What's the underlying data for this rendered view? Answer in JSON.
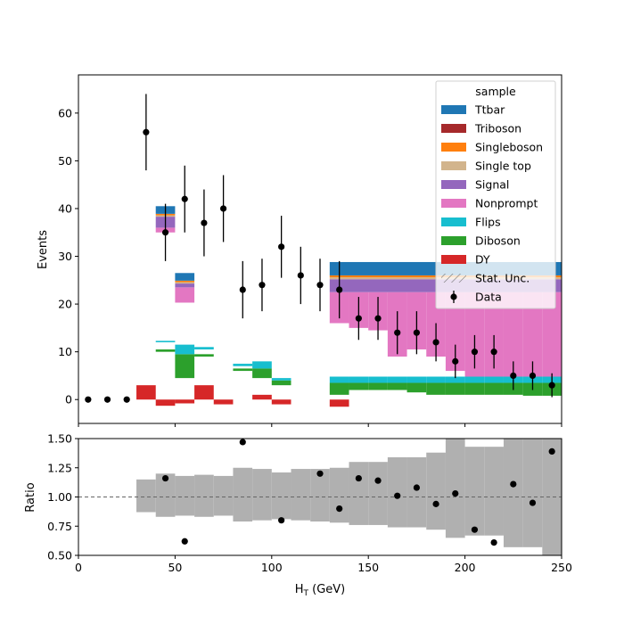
{
  "chart_data": {
    "type": "bar",
    "xlabel": "H",
    "xlabel_sub": "T",
    "xlabel_unit": " (GeV)",
    "xlim": [
      0,
      250
    ],
    "x_ticks": [
      0,
      50,
      100,
      150,
      200,
      250
    ],
    "bin_width": 10,
    "main": {
      "ylabel": "Events",
      "ylim": [
        -5,
        68
      ],
      "y_ticks": [
        0,
        10,
        20,
        30,
        40,
        50,
        60
      ],
      "legend": {
        "title": "sample",
        "position": "upper-right",
        "entries": [
          {
            "label": "Ttbar",
            "color": "#1f77b4",
            "kind": "patch"
          },
          {
            "label": "Triboson",
            "color": "#a6292b",
            "kind": "patch"
          },
          {
            "label": "Singleboson",
            "color": "#ff7f0e",
            "kind": "patch"
          },
          {
            "label": "Single top",
            "color": "#d2b48c",
            "kind": "patch"
          },
          {
            "label": "Signal",
            "color": "#9467bd",
            "kind": "patch"
          },
          {
            "label": "Nonprompt",
            "color": "#e377c2",
            "kind": "patch"
          },
          {
            "label": "Flips",
            "color": "#17becf",
            "kind": "patch"
          },
          {
            "label": "Diboson",
            "color": "#2ca02c",
            "kind": "patch"
          },
          {
            "label": "DY",
            "color": "#d62728",
            "kind": "patch"
          },
          {
            "label": "Stat. Unc.",
            "color": "#888888",
            "kind": "hatch"
          },
          {
            "label": "Data",
            "color": "#000000",
            "kind": "errorbar"
          }
        ]
      },
      "stack_segments": [
        {
          "sample": "DY",
          "color": "#d62728",
          "x0": 30,
          "x1": 40,
          "y0": 0,
          "y1": 3
        },
        {
          "sample": "DY",
          "color": "#d62728",
          "x0": 40,
          "x1": 50,
          "y0": -1.3,
          "y1": 0
        },
        {
          "sample": "DY",
          "color": "#d62728",
          "x0": 50,
          "x1": 60,
          "y0": -0.8,
          "y1": 0
        },
        {
          "sample": "DY",
          "color": "#d62728",
          "x0": 60,
          "x1": 70,
          "y0": 0,
          "y1": 3
        },
        {
          "sample": "DY",
          "color": "#d62728",
          "x0": 70,
          "x1": 80,
          "y0": -1,
          "y1": 0
        },
        {
          "sample": "DY",
          "color": "#d62728",
          "x0": 90,
          "x1": 100,
          "y0": 0,
          "y1": 1
        },
        {
          "sample": "DY",
          "color": "#d62728",
          "x0": 100,
          "x1": 110,
          "y0": -1,
          "y1": 0
        },
        {
          "sample": "DY",
          "color": "#d62728",
          "x0": 130,
          "x1": 140,
          "y0": -1.5,
          "y1": 0
        },
        {
          "sample": "Diboson",
          "color": "#2ca02c",
          "x0": 40,
          "x1": 50,
          "y0": 10,
          "y1": 10.5
        },
        {
          "sample": "Diboson",
          "color": "#2ca02c",
          "x0": 50,
          "x1": 60,
          "y0": 4.5,
          "y1": 9.5
        },
        {
          "sample": "Diboson",
          "color": "#2ca02c",
          "x0": 60,
          "x1": 70,
          "y0": 9,
          "y1": 9.5
        },
        {
          "sample": "Diboson",
          "color": "#2ca02c",
          "x0": 80,
          "x1": 90,
          "y0": 6,
          "y1": 6.5
        },
        {
          "sample": "Diboson",
          "color": "#2ca02c",
          "x0": 90,
          "x1": 100,
          "y0": 4.5,
          "y1": 6.5
        },
        {
          "sample": "Diboson",
          "color": "#2ca02c",
          "x0": 100,
          "x1": 110,
          "y0": 3,
          "y1": 4
        },
        {
          "sample": "Diboson",
          "color": "#2ca02c",
          "x0": 130,
          "x1": 140,
          "y0": 1,
          "y1": 3.5
        },
        {
          "sample": "Diboson",
          "color": "#2ca02c",
          "x0": 140,
          "x1": 150,
          "y0": 2,
          "y1": 3.5
        },
        {
          "sample": "Diboson",
          "color": "#2ca02c",
          "x0": 150,
          "x1": 160,
          "y0": 2,
          "y1": 3.5
        },
        {
          "sample": "Diboson",
          "color": "#2ca02c",
          "x0": 160,
          "x1": 170,
          "y0": 2,
          "y1": 3.5
        },
        {
          "sample": "Diboson",
          "color": "#2ca02c",
          "x0": 170,
          "x1": 180,
          "y0": 1.5,
          "y1": 3.5
        },
        {
          "sample": "Diboson",
          "color": "#2ca02c",
          "x0": 180,
          "x1": 190,
          "y0": 1,
          "y1": 3.5
        },
        {
          "sample": "Diboson",
          "color": "#2ca02c",
          "x0": 190,
          "x1": 200,
          "y0": 1,
          "y1": 3.5
        },
        {
          "sample": "Diboson",
          "color": "#2ca02c",
          "x0": 200,
          "x1": 210,
          "y0": 1,
          "y1": 3.5
        },
        {
          "sample": "Diboson",
          "color": "#2ca02c",
          "x0": 210,
          "x1": 220,
          "y0": 1,
          "y1": 3.5
        },
        {
          "sample": "Diboson",
          "color": "#2ca02c",
          "x0": 220,
          "x1": 230,
          "y0": 1,
          "y1": 3.5
        },
        {
          "sample": "Diboson",
          "color": "#2ca02c",
          "x0": 230,
          "x1": 240,
          "y0": 0.8,
          "y1": 3.5
        },
        {
          "sample": "Diboson",
          "color": "#2ca02c",
          "x0": 240,
          "x1": 250,
          "y0": 0.8,
          "y1": 3.5
        },
        {
          "sample": "Flips",
          "color": "#17becf",
          "x0": 40,
          "x1": 50,
          "y0": 12,
          "y1": 12.3
        },
        {
          "sample": "Flips",
          "color": "#17becf",
          "x0": 50,
          "x1": 60,
          "y0": 9.5,
          "y1": 11.5
        },
        {
          "sample": "Flips",
          "color": "#17becf",
          "x0": 60,
          "x1": 70,
          "y0": 10.5,
          "y1": 11
        },
        {
          "sample": "Flips",
          "color": "#17becf",
          "x0": 80,
          "x1": 90,
          "y0": 7,
          "y1": 7.5
        },
        {
          "sample": "Flips",
          "color": "#17becf",
          "x0": 90,
          "x1": 100,
          "y0": 6.5,
          "y1": 8
        },
        {
          "sample": "Flips",
          "color": "#17becf",
          "x0": 100,
          "x1": 110,
          "y0": 4,
          "y1": 4.5
        },
        {
          "sample": "Flips",
          "color": "#17becf",
          "x0": 130,
          "x1": 140,
          "y0": 3.5,
          "y1": 4.8
        },
        {
          "sample": "Flips",
          "color": "#17becf",
          "x0": 140,
          "x1": 150,
          "y0": 3.5,
          "y1": 4.8
        },
        {
          "sample": "Flips",
          "color": "#17becf",
          "x0": 150,
          "x1": 160,
          "y0": 3.5,
          "y1": 4.8
        },
        {
          "sample": "Flips",
          "color": "#17becf",
          "x0": 160,
          "x1": 170,
          "y0": 3.5,
          "y1": 4.8
        },
        {
          "sample": "Flips",
          "color": "#17becf",
          "x0": 170,
          "x1": 180,
          "y0": 3.5,
          "y1": 4.8
        },
        {
          "sample": "Flips",
          "color": "#17becf",
          "x0": 180,
          "x1": 190,
          "y0": 3.5,
          "y1": 4.8
        },
        {
          "sample": "Flips",
          "color": "#17becf",
          "x0": 190,
          "x1": 200,
          "y0": 3.5,
          "y1": 4.8
        },
        {
          "sample": "Flips",
          "color": "#17becf",
          "x0": 200,
          "x1": 210,
          "y0": 3.5,
          "y1": 4.8
        },
        {
          "sample": "Flips",
          "color": "#17becf",
          "x0": 210,
          "x1": 220,
          "y0": 3.5,
          "y1": 4.8
        },
        {
          "sample": "Flips",
          "color": "#17becf",
          "x0": 220,
          "x1": 230,
          "y0": 3.5,
          "y1": 4.8
        },
        {
          "sample": "Flips",
          "color": "#17becf",
          "x0": 230,
          "x1": 240,
          "y0": 3.5,
          "y1": 4.8
        },
        {
          "sample": "Flips",
          "color": "#17becf",
          "x0": 240,
          "x1": 250,
          "y0": 3.5,
          "y1": 4.8
        },
        {
          "sample": "Nonprompt",
          "color": "#e377c2",
          "x0": 40,
          "x1": 50,
          "y0": 35,
          "y1": 36
        },
        {
          "sample": "Nonprompt",
          "color": "#e377c2",
          "x0": 50,
          "x1": 60,
          "y0": 20.3,
          "y1": 23.5
        },
        {
          "sample": "Nonprompt",
          "color": "#e377c2",
          "x0": 130,
          "x1": 140,
          "y0": 16,
          "y1": 22.5
        },
        {
          "sample": "Nonprompt",
          "color": "#e377c2",
          "x0": 140,
          "x1": 150,
          "y0": 15,
          "y1": 22.5
        },
        {
          "sample": "Nonprompt",
          "color": "#e377c2",
          "x0": 150,
          "x1": 160,
          "y0": 14.5,
          "y1": 22.5
        },
        {
          "sample": "Nonprompt",
          "color": "#e377c2",
          "x0": 160,
          "x1": 170,
          "y0": 9,
          "y1": 22.5
        },
        {
          "sample": "Nonprompt",
          "color": "#e377c2",
          "x0": 170,
          "x1": 180,
          "y0": 10.5,
          "y1": 22.5
        },
        {
          "sample": "Nonprompt",
          "color": "#e377c2",
          "x0": 180,
          "x1": 190,
          "y0": 9,
          "y1": 22.5
        },
        {
          "sample": "Nonprompt",
          "color": "#e377c2",
          "x0": 190,
          "x1": 200,
          "y0": 6,
          "y1": 22.5
        },
        {
          "sample": "Nonprompt",
          "color": "#e377c2",
          "x0": 200,
          "x1": 210,
          "y0": 4.8,
          "y1": 22.5
        },
        {
          "sample": "Nonprompt",
          "color": "#e377c2",
          "x0": 210,
          "x1": 220,
          "y0": 4.8,
          "y1": 22.5
        },
        {
          "sample": "Nonprompt",
          "color": "#e377c2",
          "x0": 220,
          "x1": 230,
          "y0": 4.8,
          "y1": 22.5
        },
        {
          "sample": "Nonprompt",
          "color": "#e377c2",
          "x0": 230,
          "x1": 240,
          "y0": 4.8,
          "y1": 22.5
        },
        {
          "sample": "Nonprompt",
          "color": "#e377c2",
          "x0": 240,
          "x1": 250,
          "y0": 4.8,
          "y1": 22.5
        },
        {
          "sample": "Signal",
          "color": "#9467bd",
          "x0": 40,
          "x1": 50,
          "y0": 36,
          "y1": 38.3
        },
        {
          "sample": "Signal",
          "color": "#9467bd",
          "x0": 50,
          "x1": 60,
          "y0": 23.5,
          "y1": 24.3
        },
        {
          "sample": "Signal",
          "color": "#9467bd",
          "x0": 130,
          "x1": 250,
          "y0": 22.5,
          "y1": 25.2
        },
        {
          "sample": "Single top",
          "color": "#d2b48c",
          "x0": 40,
          "x1": 50,
          "y0": 38.3,
          "y1": 38.6
        },
        {
          "sample": "Single top",
          "color": "#d2b48c",
          "x0": 50,
          "x1": 60,
          "y0": 24.3,
          "y1": 24.6
        },
        {
          "sample": "Single top",
          "color": "#d2b48c",
          "x0": 130,
          "x1": 250,
          "y0": 25.2,
          "y1": 25.6
        },
        {
          "sample": "Singleboson",
          "color": "#ff7f0e",
          "x0": 40,
          "x1": 50,
          "y0": 38.6,
          "y1": 38.9
        },
        {
          "sample": "Singleboson",
          "color": "#ff7f0e",
          "x0": 50,
          "x1": 60,
          "y0": 24.6,
          "y1": 24.9
        },
        {
          "sample": "Singleboson",
          "color": "#ff7f0e",
          "x0": 130,
          "x1": 250,
          "y0": 25.6,
          "y1": 26.0
        },
        {
          "sample": "Ttbar",
          "color": "#1f77b4",
          "x0": 40,
          "x1": 50,
          "y0": 38.9,
          "y1": 40.5
        },
        {
          "sample": "Ttbar",
          "color": "#1f77b4",
          "x0": 50,
          "x1": 60,
          "y0": 24.9,
          "y1": 26.5
        },
        {
          "sample": "Ttbar",
          "color": "#1f77b4",
          "x0": 130,
          "x1": 250,
          "y0": 26.0,
          "y1": 28.8
        }
      ],
      "data_points": [
        {
          "x": 5,
          "y": 0,
          "err": 0
        },
        {
          "x": 15,
          "y": 0,
          "err": 0
        },
        {
          "x": 25,
          "y": 0,
          "err": 0
        },
        {
          "x": 35,
          "y": 56,
          "err": 8
        },
        {
          "x": 45,
          "y": 35,
          "err": 6
        },
        {
          "x": 55,
          "y": 42,
          "err": 7
        },
        {
          "x": 65,
          "y": 37,
          "err": 7
        },
        {
          "x": 75,
          "y": 40,
          "err": 7
        },
        {
          "x": 85,
          "y": 23,
          "err": 6
        },
        {
          "x": 95,
          "y": 24,
          "err": 5.5
        },
        {
          "x": 105,
          "y": 32,
          "err": 6.5
        },
        {
          "x": 115,
          "y": 26,
          "err": 6
        },
        {
          "x": 125,
          "y": 24,
          "err": 5.5
        },
        {
          "x": 135,
          "y": 23,
          "err": 6
        },
        {
          "x": 145,
          "y": 17,
          "err": 4.5
        },
        {
          "x": 155,
          "y": 17,
          "err": 4.5
        },
        {
          "x": 165,
          "y": 14,
          "err": 4.5
        },
        {
          "x": 175,
          "y": 14,
          "err": 4.5
        },
        {
          "x": 185,
          "y": 12,
          "err": 4
        },
        {
          "x": 195,
          "y": 8,
          "err": 3.5
        },
        {
          "x": 205,
          "y": 10,
          "err": 3.5
        },
        {
          "x": 215,
          "y": 10,
          "err": 3.5
        },
        {
          "x": 225,
          "y": 5,
          "err": 3
        },
        {
          "x": 235,
          "y": 5,
          "err": 3
        },
        {
          "x": 245,
          "y": 3,
          "err": 2.5
        }
      ]
    },
    "ratio": {
      "ylabel": "Ratio",
      "ylim": [
        0.5,
        1.5
      ],
      "y_ticks": [
        0.5,
        0.75,
        1.0,
        1.25,
        1.5
      ],
      "y_tick_labels": [
        "0.50",
        "0.75",
        "1.00",
        "1.25",
        "1.50"
      ],
      "reference_line": 1.0,
      "uncertainty_band": [
        {
          "x0": 30,
          "x1": 40,
          "lo": 0.87,
          "hi": 1.15
        },
        {
          "x0": 40,
          "x1": 50,
          "lo": 0.83,
          "hi": 1.2
        },
        {
          "x0": 50,
          "x1": 60,
          "lo": 0.84,
          "hi": 1.18
        },
        {
          "x0": 60,
          "x1": 70,
          "lo": 0.83,
          "hi": 1.19
        },
        {
          "x0": 70,
          "x1": 80,
          "lo": 0.84,
          "hi": 1.18
        },
        {
          "x0": 80,
          "x1": 90,
          "lo": 0.79,
          "hi": 1.25
        },
        {
          "x0": 90,
          "x1": 100,
          "lo": 0.8,
          "hi": 1.24
        },
        {
          "x0": 100,
          "x1": 110,
          "lo": 0.81,
          "hi": 1.21
        },
        {
          "x0": 110,
          "x1": 120,
          "lo": 0.8,
          "hi": 1.24
        },
        {
          "x0": 120,
          "x1": 130,
          "lo": 0.79,
          "hi": 1.24
        },
        {
          "x0": 130,
          "x1": 140,
          "lo": 0.78,
          "hi": 1.25
        },
        {
          "x0": 140,
          "x1": 150,
          "lo": 0.76,
          "hi": 1.3
        },
        {
          "x0": 150,
          "x1": 160,
          "lo": 0.76,
          "hi": 1.3
        },
        {
          "x0": 160,
          "x1": 170,
          "lo": 0.74,
          "hi": 1.34
        },
        {
          "x0": 170,
          "x1": 180,
          "lo": 0.74,
          "hi": 1.34
        },
        {
          "x0": 180,
          "x1": 190,
          "lo": 0.72,
          "hi": 1.38
        },
        {
          "x0": 190,
          "x1": 200,
          "lo": 0.65,
          "hi": 1.5
        },
        {
          "x0": 200,
          "x1": 210,
          "lo": 0.67,
          "hi": 1.43
        },
        {
          "x0": 210,
          "x1": 220,
          "lo": 0.67,
          "hi": 1.43
        },
        {
          "x0": 220,
          "x1": 230,
          "lo": 0.57,
          "hi": 1.5
        },
        {
          "x0": 230,
          "x1": 240,
          "lo": 0.57,
          "hi": 1.5
        },
        {
          "x0": 240,
          "x1": 250,
          "lo": 0.5,
          "hi": 1.5
        }
      ],
      "points": [
        {
          "x": 45,
          "y": 1.16
        },
        {
          "x": 55,
          "y": 0.62
        },
        {
          "x": 85,
          "y": 1.47
        },
        {
          "x": 105,
          "y": 0.8
        },
        {
          "x": 125,
          "y": 1.2
        },
        {
          "x": 135,
          "y": 0.9
        },
        {
          "x": 145,
          "y": 1.16
        },
        {
          "x": 155,
          "y": 1.14
        },
        {
          "x": 165,
          "y": 1.01
        },
        {
          "x": 175,
          "y": 1.08
        },
        {
          "x": 185,
          "y": 0.94
        },
        {
          "x": 195,
          "y": 1.03
        },
        {
          "x": 205,
          "y": 0.72
        },
        {
          "x": 215,
          "y": 0.61
        },
        {
          "x": 225,
          "y": 1.11
        },
        {
          "x": 235,
          "y": 0.95
        },
        {
          "x": 245,
          "y": 1.39
        }
      ]
    }
  }
}
